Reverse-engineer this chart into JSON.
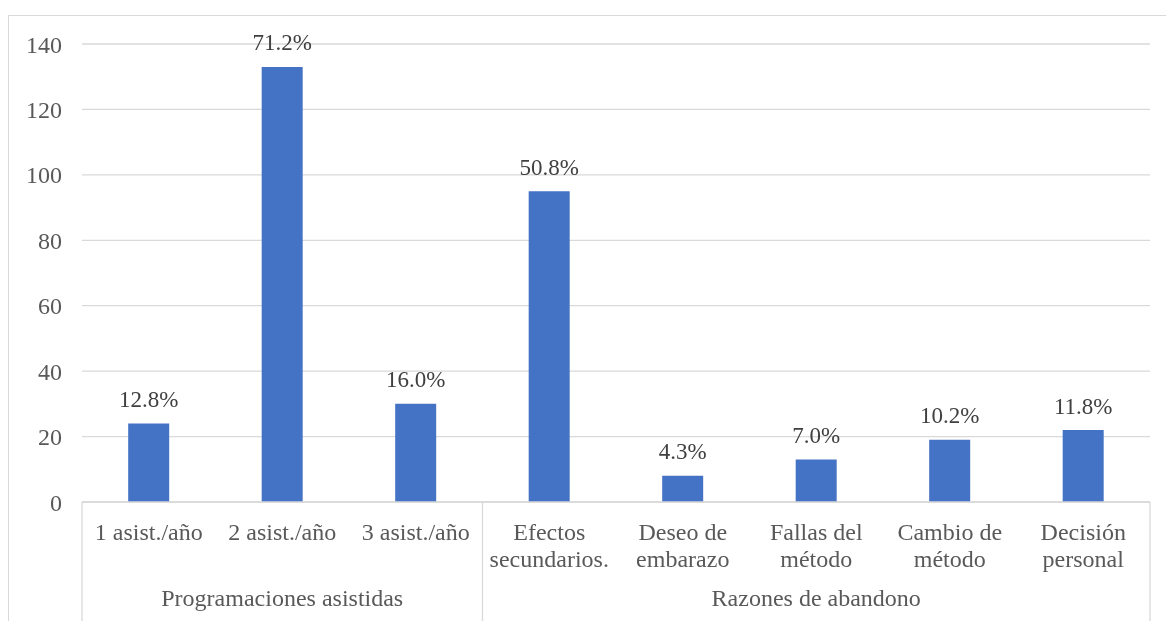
{
  "chart_data": {
    "type": "bar",
    "categories": [
      "1 asist./año",
      "2 asist./año",
      "3 asist./año",
      "Efectos secundarios.",
      "Deseo de embarazo",
      "Fallas del método",
      "Cambio de método",
      "Decisión personal"
    ],
    "values": [
      24,
      133,
      30,
      95,
      8,
      13,
      19,
      22
    ],
    "color": "#4472c4",
    "ylim": [
      0,
      140
    ],
    "yticks": [
      0,
      20,
      40,
      60,
      80,
      100,
      120,
      140
    ],
    "grid": "y",
    "annotations": [
      {
        "text": "12.8%",
        "x": "1 asist./año",
        "y": 24
      },
      {
        "text": "71.2%",
        "x": "2 asist./año",
        "y": 133
      },
      {
        "text": "16.0%",
        "x": "3 asist./año",
        "y": 30
      },
      {
        "text": "50.8%",
        "x": "Efectos secundarios.",
        "y": 95
      },
      {
        "text": "4.3%",
        "x": "Deseo de embarazo",
        "y": 8
      },
      {
        "text": "7.0%",
        "x": "Fallas del método",
        "y": 13
      },
      {
        "text": "10.2%",
        "x": "Cambio de método",
        "y": 19
      },
      {
        "text": "11.8%",
        "x": "Decisión personal",
        "y": 22
      },
      "Programaciones asistidas",
      "Razones de abandono"
    ]
  }
}
